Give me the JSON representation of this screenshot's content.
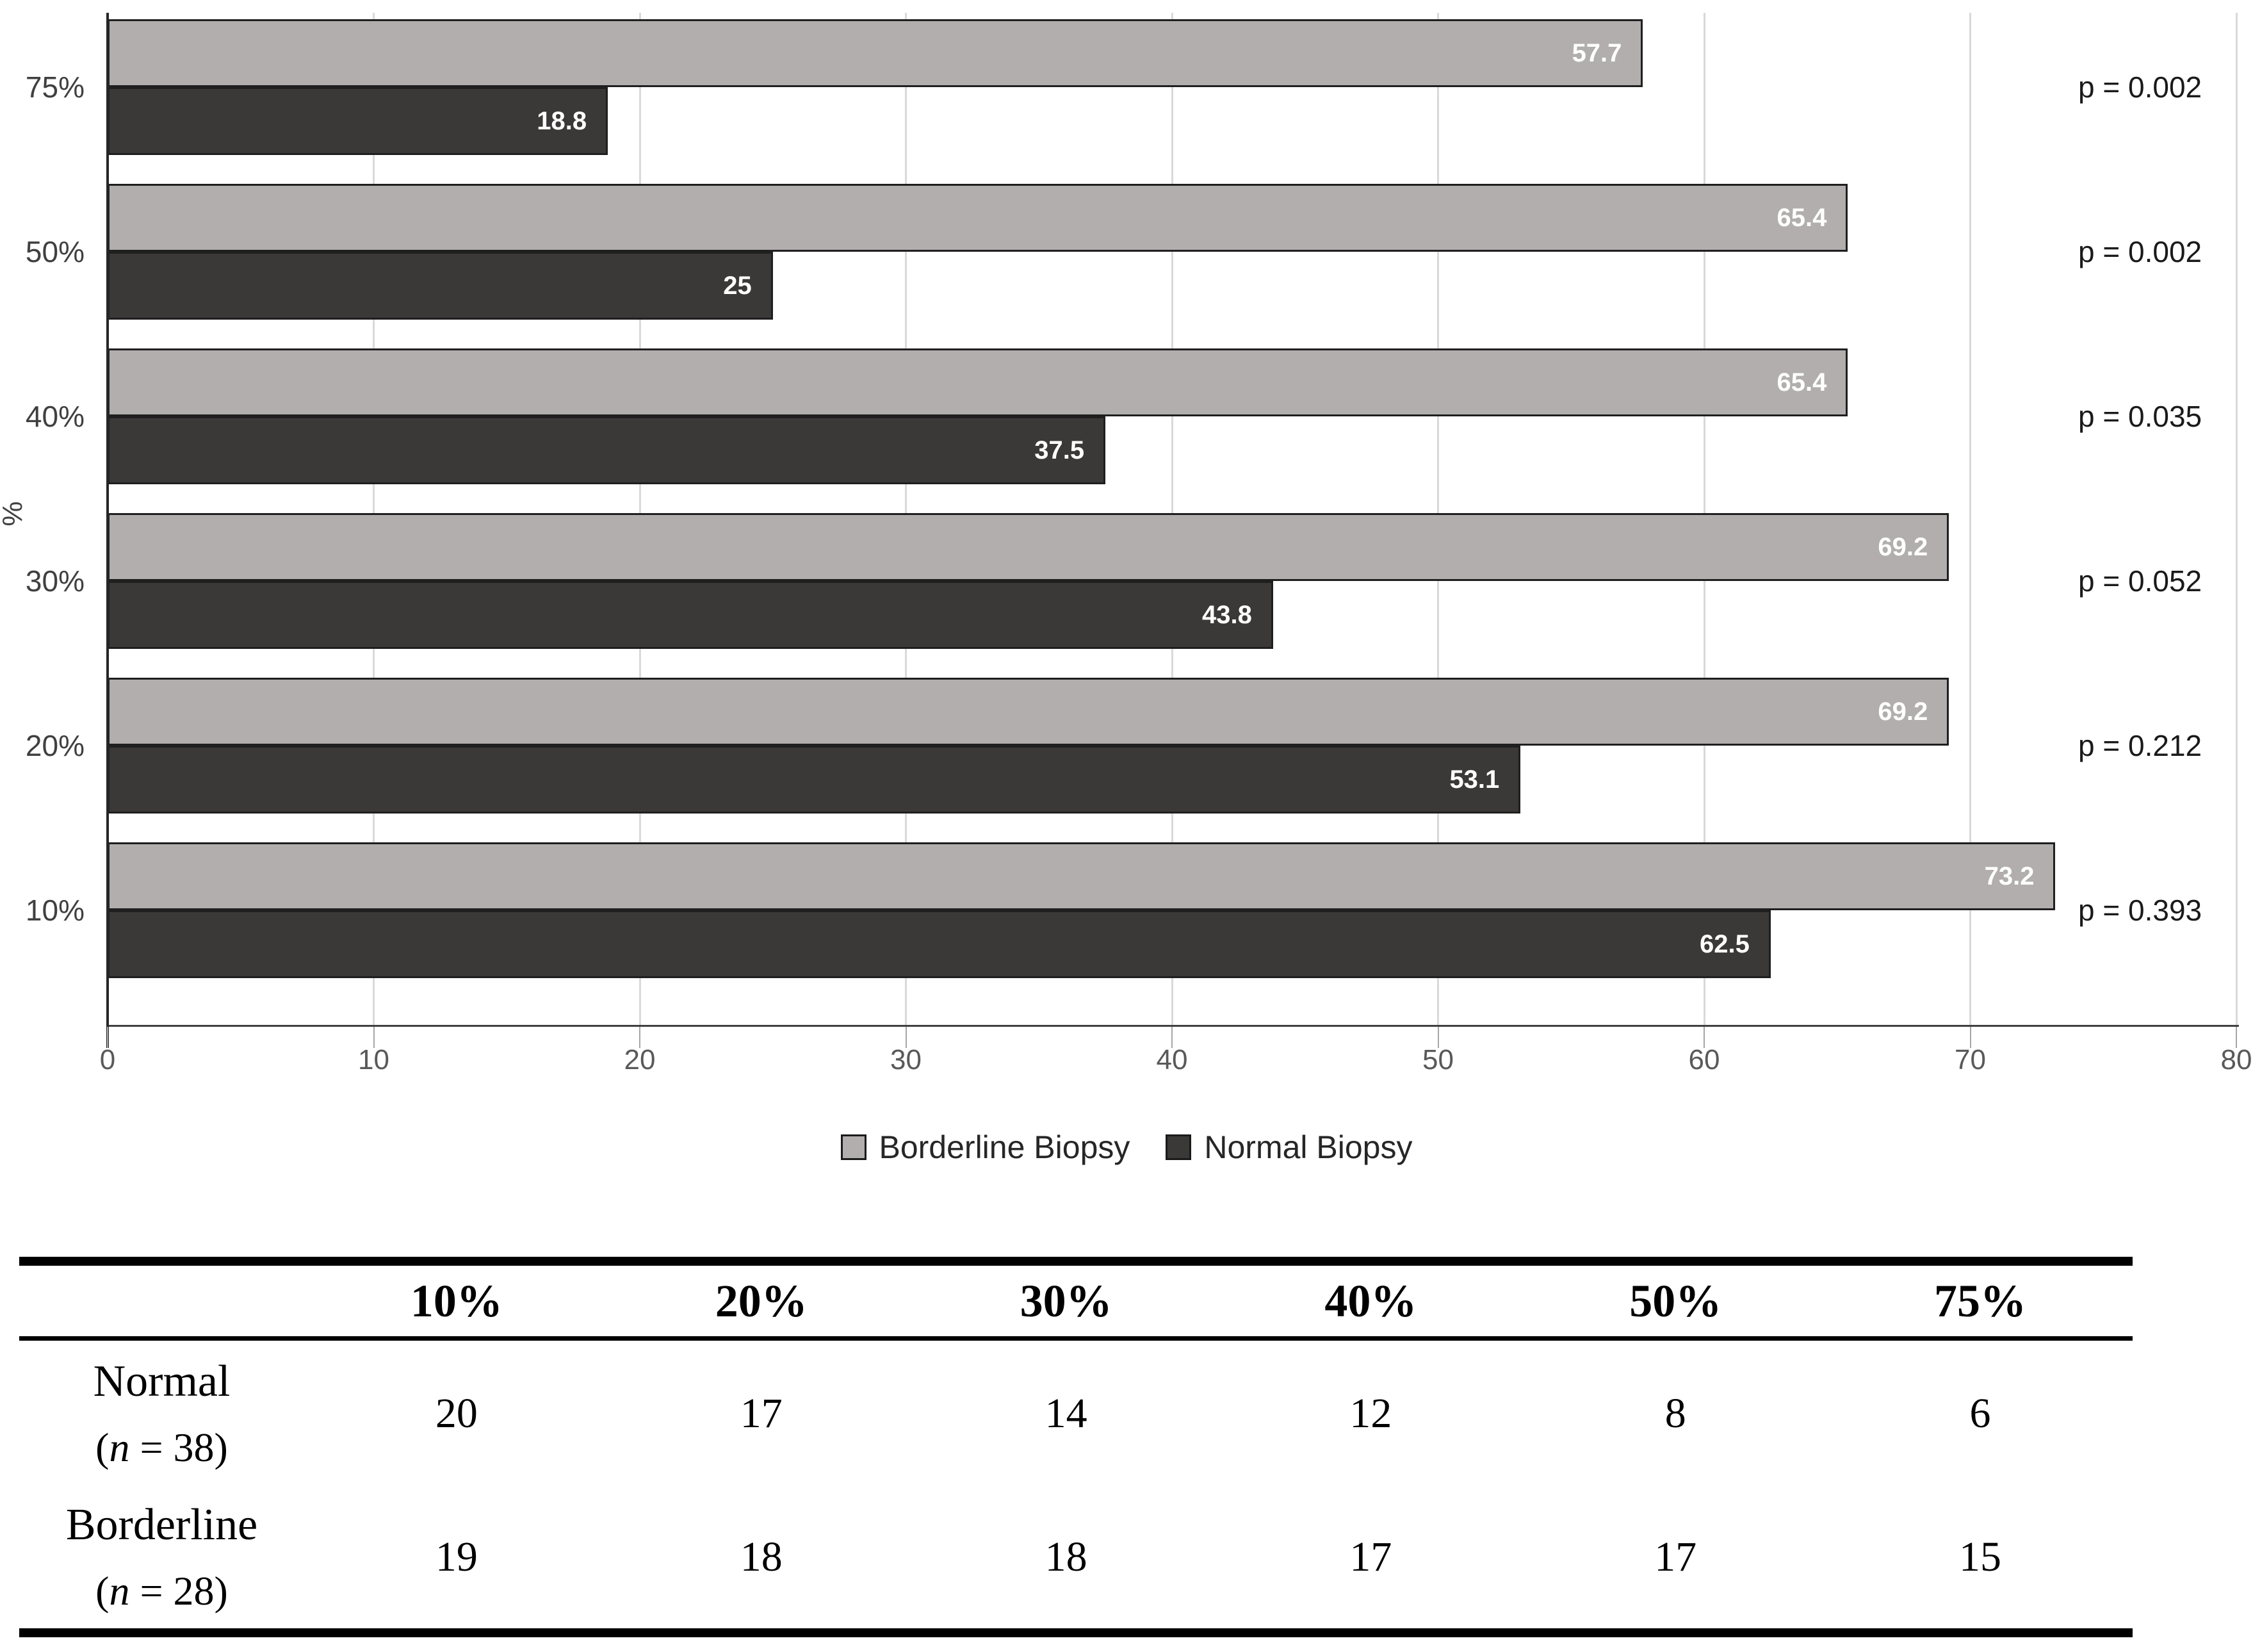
{
  "chart_data": {
    "type": "bar",
    "orientation": "horizontal",
    "title": "",
    "xlabel": "",
    "ylabel": "%",
    "xlim": [
      0,
      80
    ],
    "x_ticks": [
      "0",
      "10",
      "20",
      "30",
      "40",
      "50",
      "60",
      "70",
      "80"
    ],
    "grid": true,
    "legend_position": "bottom",
    "categories": [
      "75%",
      "50%",
      "40%",
      "30%",
      "20%",
      "10%"
    ],
    "series": [
      {
        "name": "Borderline Biopsy",
        "color": "#b2aeae",
        "values": [
          57.7,
          65.4,
          65.4,
          69.2,
          69.2,
          73.2
        ]
      },
      {
        "name": "Normal Biopsy",
        "color": "#3b3838",
        "values": [
          18.8,
          25,
          37.5,
          43.8,
          53.1,
          62.5
        ]
      }
    ],
    "value_labels": [
      [
        "57.7",
        "65.4",
        "65.4",
        "69.2",
        "69.2",
        "73.2"
      ],
      [
        "18.8",
        "25",
        "37.5",
        "43.8",
        "53.1",
        "62.5"
      ]
    ],
    "p_values": [
      "p = 0.002",
      "p = 0.002",
      "p = 0.035",
      "p = 0.052",
      "p = 0.212",
      "p = 0.393"
    ]
  },
  "legend": {
    "items": [
      {
        "label": "Borderline Biopsy",
        "color": "#b2aeae"
      },
      {
        "label": "Normal Biopsy",
        "color": "#3b3838"
      }
    ]
  },
  "table": {
    "col_headers": [
      "10%",
      "20%",
      "30%",
      "40%",
      "50%",
      "75%"
    ],
    "rows": [
      {
        "label": "Normal",
        "n_pre": "(",
        "n_it": "n",
        "n_post": " = 38)",
        "values": [
          "20",
          "17",
          "14",
          "12",
          "8",
          "6"
        ]
      },
      {
        "label": "Borderline",
        "n_pre": "(",
        "n_it": "n",
        "n_post": " = 28)",
        "values": [
          "19",
          "18",
          "18",
          "17",
          "17",
          "15"
        ]
      }
    ]
  },
  "colors": {
    "gridline": "#d9d9d9",
    "axis": "#404040",
    "tick_text": "#595959",
    "bar_border": "#1f1f1f",
    "value_text": "#ffffff",
    "rule": "#000000"
  }
}
